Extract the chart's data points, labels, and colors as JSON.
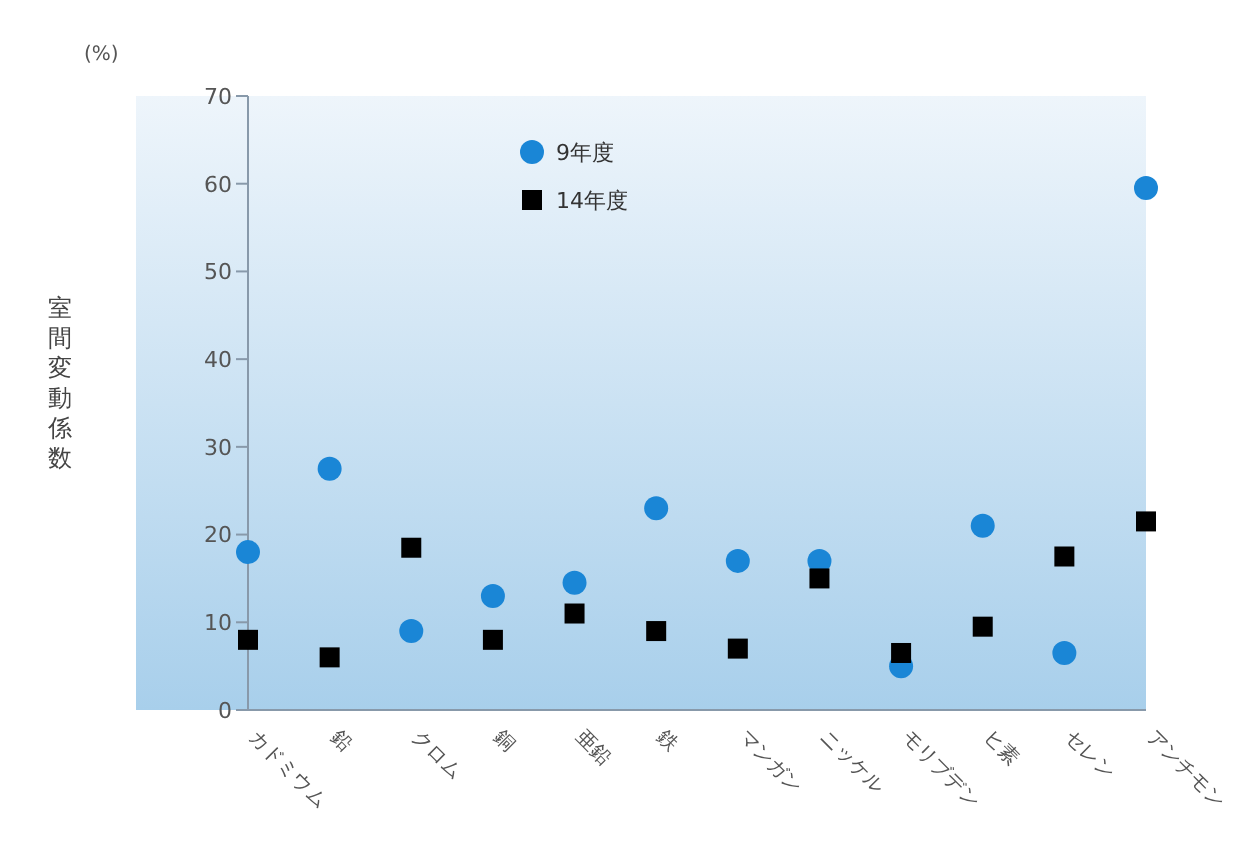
{
  "chart_data": {
    "type": "scatter",
    "ylabel": "室間変動係数",
    "annotations": [
      "(%)"
    ],
    "categories": [
      "カドミウム",
      "鉛",
      "クロム",
      "銅",
      "亜鉛",
      "鉄",
      "マンガン",
      "ニッケル",
      "モリブデン",
      "ヒ素",
      "セレン",
      "アンチモン"
    ],
    "series": [
      {
        "name": "9年度",
        "color": "#1a86d6",
        "marker": "circle",
        "values": [
          18,
          27.5,
          9,
          13,
          14.5,
          23,
          17,
          17,
          5,
          21,
          6.5,
          59.5
        ]
      },
      {
        "name": "14年度",
        "color": "#000000",
        "marker": "square",
        "values": [
          8,
          6,
          18.5,
          8,
          11,
          9,
          7,
          15,
          6.5,
          9.5,
          17.5,
          21.5
        ]
      }
    ],
    "ylim": [
      0,
      70
    ],
    "yticks": [
      0,
      10,
      20,
      30,
      40,
      50,
      60,
      70
    ],
    "grid": false,
    "legend": "top"
  }
}
